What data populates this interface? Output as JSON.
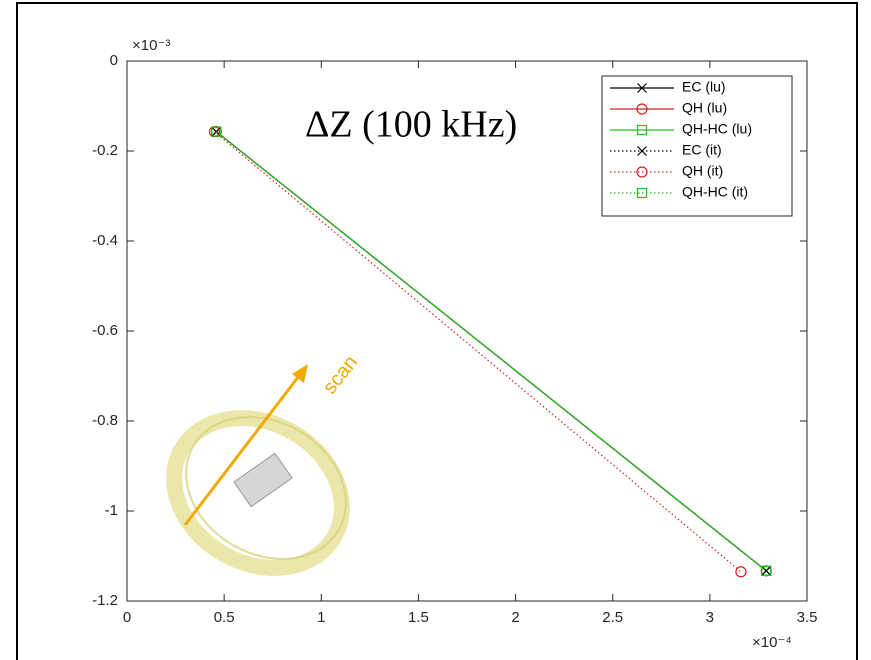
{
  "chart_data": {
    "type": "line",
    "annotation": "ΔZ (100 kHz)",
    "inset_label": "scan",
    "x_multiplier": "×10⁻⁴",
    "y_multiplier": "×10⁻³",
    "xlim": [
      0,
      3.5
    ],
    "xticks": [
      0,
      0.5,
      1,
      1.5,
      2,
      2.5,
      3,
      3.5
    ],
    "ylim": [
      -1.2,
      0
    ],
    "yticks": [
      0,
      -0.2,
      -0.4,
      -0.6,
      -0.8,
      -1,
      -1.2
    ],
    "grid": false,
    "legend": "top-right",
    "series": [
      {
        "name": "EC (lu)",
        "color": "#000000",
        "line_style": "solid",
        "marker": "x",
        "x": [
          0.46,
          3.29
        ],
        "values": [
          -0.157,
          -1.133
        ]
      },
      {
        "name": "QH (lu)",
        "color": "#d62020",
        "line_style": "solid",
        "marker": "circle",
        "x": [
          0.46,
          3.29
        ],
        "values": [
          -0.157,
          -1.133
        ]
      },
      {
        "name": "QH-HC (lu)",
        "color": "#22c022",
        "line_style": "solid",
        "marker": "square",
        "x": [
          0.46,
          3.29
        ],
        "values": [
          -0.157,
          -1.133
        ]
      },
      {
        "name": "EC (it)",
        "color": "#000000",
        "line_style": "dotted",
        "marker": "x",
        "x": [
          0.46,
          3.29
        ],
        "values": [
          -0.157,
          -1.133
        ]
      },
      {
        "name": "QH (it)",
        "color": "#d62020",
        "line_style": "dotted",
        "marker": "circle",
        "x": [
          0.45,
          3.16
        ],
        "values": [
          -0.157,
          -1.135
        ]
      },
      {
        "name": "QH-HC (it)",
        "color": "#22c022",
        "line_style": "dotted",
        "marker": "square",
        "x": [
          0.46,
          3.29
        ],
        "values": [
          -0.157,
          -1.133
        ]
      }
    ]
  }
}
